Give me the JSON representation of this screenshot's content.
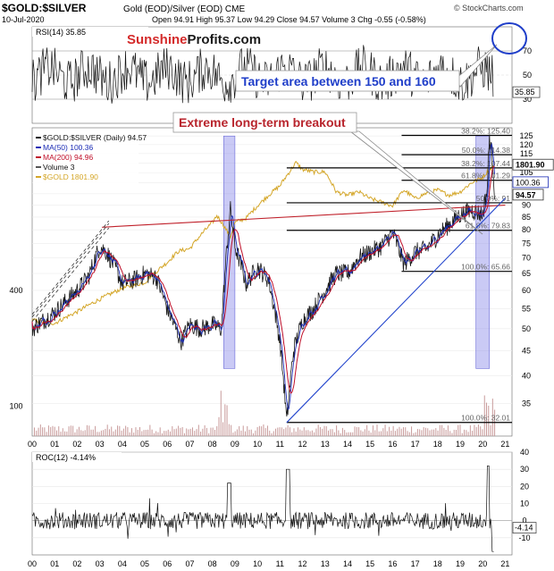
{
  "header": {
    "symbol": "$GOLD:$SILVER",
    "desc": "Gold (EOD)/Silver (EOD) CME",
    "date": "10-Jul-2020",
    "ohlc": "Open 94.91  High 95.37  Low 94.29  Close 94.57  Volume 3  Chg -0.55 (-0.58%)",
    "source": "© StockCharts.com"
  },
  "brand": {
    "name_red": "Sunshine",
    "name_dark": "Profits.com"
  },
  "annotations": {
    "target": "Target area between 150 and 160",
    "breakout": "Extreme long-term breakout"
  },
  "colors": {
    "ratio": "#1a1a1a",
    "ma50": "#1a2bb5",
    "ma200": "#c0102a",
    "gold": "#d4a628",
    "trend_red": "#c0202a",
    "trend_blue": "#2244cc",
    "highlight": "#8a8ae8",
    "volume": "#c89a9a",
    "circle": "#1f3ec9"
  },
  "chart_data": [
    {
      "type": "line",
      "panel": "RSI",
      "title": "RSI(14) 35.85",
      "ylim": [
        10,
        90
      ],
      "yticks": [
        30,
        50,
        70
      ],
      "levels": [
        30,
        70
      ],
      "last_value": 35.85
    },
    {
      "type": "line",
      "panel": "price",
      "title": "$GOLD:$SILVER (Daily) 94.57",
      "legend": [
        "$GOLD:$SILVER (Daily) 94.57",
        "MA(50) 100.36",
        "MA(200) 94.96",
        "Volume 3",
        "$GOLD 1801.90"
      ],
      "scale": "log",
      "ylim": [
        30,
        130
      ],
      "yticks": [
        35,
        40,
        45,
        50,
        55,
        60,
        65,
        70,
        75,
        80,
        85,
        90,
        95,
        100,
        105,
        110,
        115,
        120,
        125
      ],
      "gold_ticks": [
        100,
        400
      ],
      "xlabels": [
        "00",
        "01",
        "02",
        "03",
        "04",
        "05",
        "06",
        "07",
        "08",
        "09",
        "10",
        "11",
        "12",
        "13",
        "14",
        "15",
        "16",
        "17",
        "18",
        "19",
        "20",
        "21"
      ],
      "price_labels": [
        {
          "text": "1801.90",
          "value": 1801.9
        },
        {
          "text": "100.36",
          "value": 100.36
        },
        {
          "text": "94.57",
          "value": 94.57
        }
      ],
      "fib_levels": [
        {
          "label": "100.0%: 32.01",
          "value": 32.01,
          "x_start": 2011.3
        },
        {
          "label": "100.0%: 65.66",
          "value": 65.66,
          "x_start": 2016.4
        },
        {
          "label": "61.8%: 79.83",
          "value": 79.83,
          "x_start": 2011.3
        },
        {
          "label": "50.0%: 91",
          "value": 91,
          "x_start": 2011.3
        },
        {
          "label": "61.8%: 101.29",
          "value": 101.29,
          "x_start": 2016.4
        },
        {
          "label": "38.2%: 107.44",
          "value": 107.44,
          "x_start": 2011.3
        },
        {
          "label": "50.0%: 114.38",
          "value": 114.38,
          "x_start": 2016.4
        },
        {
          "label": "38.2%: 125.40",
          "value": 125.4,
          "x_start": 2016.4
        }
      ],
      "ratio_series": {
        "x": [
          2000.0,
          2000.5,
          2001.0,
          2001.5,
          2002.0,
          2002.5,
          2003.0,
          2003.3,
          2003.6,
          2004.0,
          2004.5,
          2005.0,
          2005.5,
          2006.0,
          2006.3,
          2006.6,
          2007.0,
          2007.5,
          2008.0,
          2008.4,
          2008.8,
          2009.0,
          2009.5,
          2010.0,
          2010.5,
          2011.0,
          2011.3,
          2011.6,
          2012.0,
          2012.5,
          2013.0,
          2013.5,
          2014.0,
          2014.5,
          2015.0,
          2015.5,
          2016.0,
          2016.5,
          2017.0,
          2017.5,
          2018.0,
          2018.5,
          2019.0,
          2019.5,
          2020.0,
          2020.2,
          2020.3,
          2020.45,
          2020.53
        ],
        "y": [
          50,
          52,
          54,
          57,
          60,
          64,
          74,
          72,
          68,
          62,
          63,
          65,
          64,
          55,
          51,
          47,
          51,
          50,
          51,
          50,
          88,
          74,
          62,
          67,
          63,
          47,
          32,
          45,
          52,
          55,
          60,
          65,
          65,
          70,
          72,
          74,
          79,
          68,
          72,
          73,
          78,
          82,
          86,
          88,
          86,
          97,
          125,
          110,
          94.57
        ]
      },
      "gold_series": {
        "x": [
          2000.0,
          2001.0,
          2002.0,
          2003.0,
          2004.0,
          2005.0,
          2006.0,
          2006.5,
          2007.0,
          2008.0,
          2008.2,
          2008.8,
          2009.0,
          2009.5,
          2010.0,
          2010.5,
          2011.0,
          2011.5,
          2011.7,
          2012.0,
          2012.5,
          2013.0,
          2013.5,
          2014.0,
          2014.5,
          2015.0,
          2015.5,
          2016.0,
          2016.5,
          2017.0,
          2017.5,
          2018.0,
          2018.5,
          2019.0,
          2019.5,
          2020.0,
          2020.3,
          2020.53
        ],
        "y": [
          280,
          270,
          310,
          360,
          410,
          440,
          560,
          640,
          660,
          900,
          980,
          760,
          900,
          950,
          1100,
          1250,
          1400,
          1700,
          1850,
          1700,
          1650,
          1650,
          1300,
          1250,
          1300,
          1200,
          1150,
          1100,
          1330,
          1200,
          1280,
          1330,
          1250,
          1300,
          1450,
          1550,
          1700,
          1801.9
        ]
      },
      "trendlines": [
        {
          "color": "red",
          "from": [
            2003.1,
            81
          ],
          "to": [
            2021.0,
            90
          ]
        },
        {
          "color": "blue",
          "from": [
            2011.3,
            32
          ],
          "to": [
            2021.0,
            93
          ]
        }
      ],
      "highlights": [
        {
          "from": 2008.5,
          "to": 2009.0
        },
        {
          "from": 2019.7,
          "to": 2020.3
        }
      ]
    },
    {
      "type": "line",
      "panel": "ROC",
      "title": "ROC(12) -4.14%",
      "ylim": [
        -20,
        40
      ],
      "yticks": [
        -10,
        0,
        10,
        20,
        30,
        40
      ],
      "xlabels": [
        "00",
        "01",
        "02",
        "03",
        "04",
        "05",
        "06",
        "07",
        "08",
        "09",
        "10",
        "11",
        "12",
        "13",
        "14",
        "15",
        "16",
        "17",
        "18",
        "19",
        "20",
        "21"
      ],
      "last_value": -4.14,
      "last_label": "-4.14"
    }
  ]
}
